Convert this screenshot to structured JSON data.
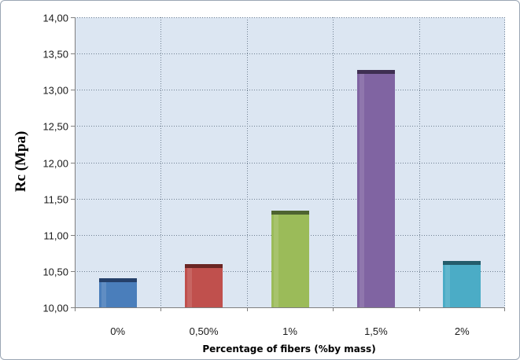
{
  "chart_data": {
    "type": "bar",
    "title": "",
    "xlabel": "Percentage of fibers (%by mass)",
    "ylabel": "Rc (Mpa)",
    "categories": [
      "0%",
      "0,50%",
      "1%",
      "1,5%",
      "2%"
    ],
    "values": [
      10.4,
      10.6,
      11.33,
      13.27,
      10.64
    ],
    "bar_colors": [
      "#4a7ebb",
      "#c0504d",
      "#9bbb59",
      "#8064a2",
      "#4bacc6"
    ],
    "bar_top_colors": [
      "#25406a",
      "#6a2624",
      "#4e6330",
      "#3f2f52",
      "#245c6b"
    ],
    "ylim": [
      10.0,
      14.0
    ],
    "ytick_step": 0.5,
    "ytick_labels": [
      "10,00",
      "10,50",
      "11,00",
      "11,50",
      "12,00",
      "12,50",
      "13,00",
      "13,50",
      "14,00"
    ],
    "grid": true,
    "grid_style": "dotted",
    "legend": "none",
    "plot_background": "#dce6f2",
    "gridline_color": "#6f7f91"
  }
}
